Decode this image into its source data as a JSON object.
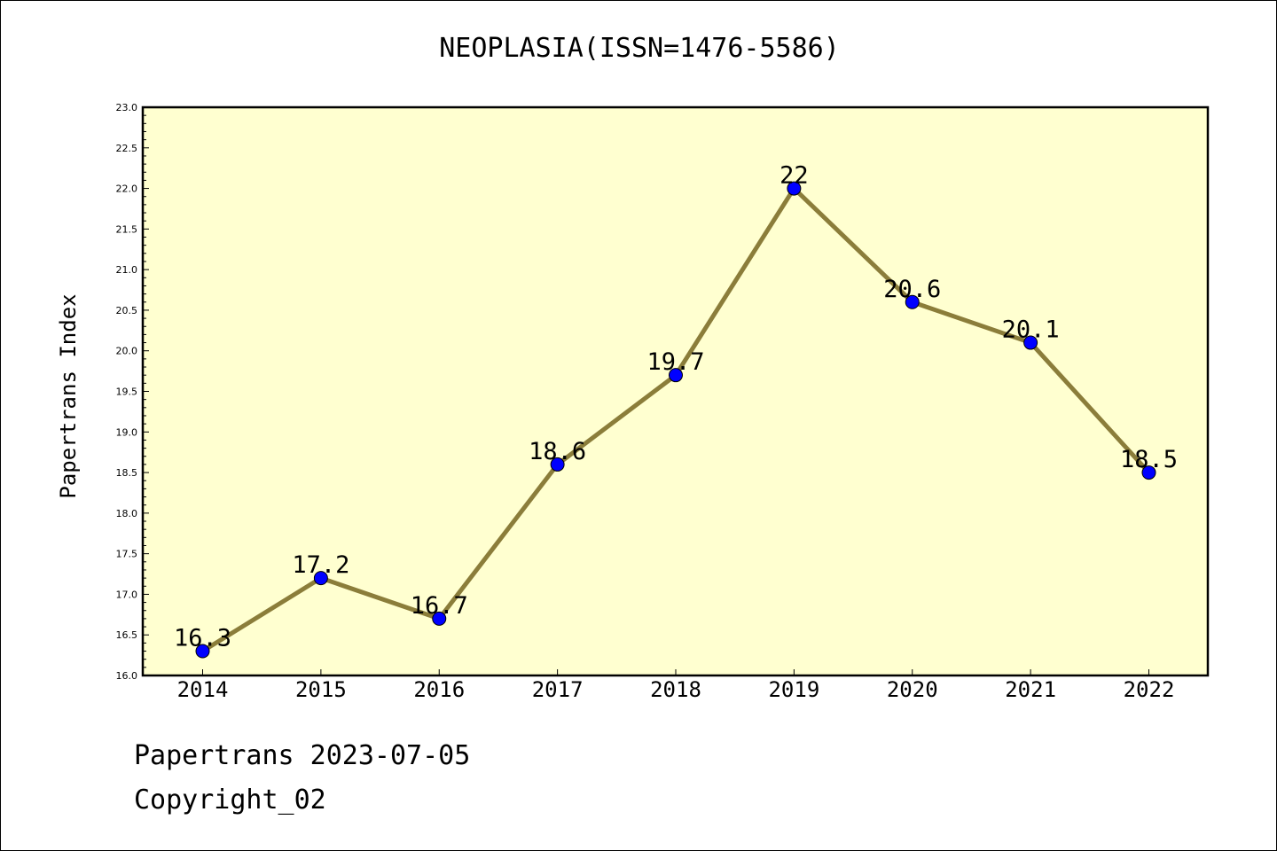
{
  "chart_data": {
    "type": "line",
    "title": "NEOPLASIA(ISSN=1476-5586)",
    "xlabel": "",
    "ylabel": "Papertrans Index",
    "categories": [
      "2014",
      "2015",
      "2016",
      "2017",
      "2018",
      "2019",
      "2020",
      "2021",
      "2022"
    ],
    "series": [
      {
        "values": [
          16.3,
          17.2,
          16.7,
          18.6,
          19.7,
          22,
          20.6,
          20.1,
          18.5
        ],
        "data_labels": [
          "16.3",
          "17.2",
          "16.7",
          "18.6",
          "19.7",
          "22",
          "20.6",
          "20.1",
          "18.5"
        ]
      }
    ],
    "ylim": [
      16.0,
      23.0
    ],
    "yticks": [
      "16.0",
      "16.5",
      "17.0",
      "17.5",
      "18.0",
      "18.5",
      "19.0",
      "19.5",
      "20.0",
      "20.5",
      "21.0",
      "21.5",
      "22.0",
      "22.5",
      "23.0"
    ],
    "grid": false,
    "legend": "none",
    "colors": {
      "plot_background": "#FFFFD0",
      "line": "#8B7D3A",
      "marker": "#0000FF"
    }
  },
  "footer": {
    "date_text": "Papertrans 2023-07-05",
    "copyright_text": "Copyright_02"
  }
}
